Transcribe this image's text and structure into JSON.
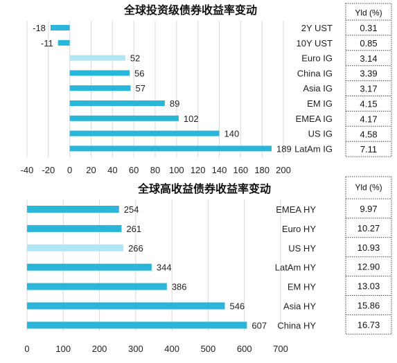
{
  "colors": {
    "bar": "#29b6d8",
    "highlight": "#b3e6f5",
    "grid": "#d9d9d9",
    "box_border": "#444444"
  },
  "chart_data": [
    {
      "type": "bar",
      "orientation": "horizontal",
      "title": "全球投资级债券收益率变动",
      "categories": [
        "2Y UST",
        "10Y UST",
        "Euro IG",
        "China IG",
        "Asia IG",
        "EM IG",
        "EMEA IG",
        "US IG",
        "LatAm IG"
      ],
      "values": [
        -18,
        -11,
        52,
        56,
        57,
        89,
        102,
        140,
        189
      ],
      "highlight_index": 2,
      "xlim": [
        -40,
        200
      ],
      "xticks": [
        "-40",
        "-20",
        "0",
        "20",
        "40",
        "60",
        "80",
        "100",
        "120",
        "140",
        "160",
        "180",
        "200"
      ],
      "grid": true,
      "yield_header": "Yld (%)",
      "yields": [
        "0.31",
        "0.85",
        "3.14",
        "3.39",
        "3.17",
        "4.15",
        "4.17",
        "4.58",
        "7.11"
      ]
    },
    {
      "type": "bar",
      "orientation": "horizontal",
      "title": "全球高收益债券收益率变动",
      "categories": [
        "EMEA HY",
        "Euro HY",
        "US HY",
        "LatAm HY",
        "EM HY",
        "Asia HY",
        "China HY"
      ],
      "values": [
        254,
        261,
        266,
        344,
        386,
        546,
        607
      ],
      "highlight_index": 2,
      "xlim": [
        0,
        700
      ],
      "xticks": [
        "0",
        "100",
        "200",
        "300",
        "400",
        "500",
        "600",
        "700"
      ],
      "grid": true,
      "yield_header": "Yld (%)",
      "yields": [
        "9.97",
        "10.27",
        "10.93",
        "12.90",
        "13.03",
        "15.86",
        "16.73"
      ]
    }
  ]
}
